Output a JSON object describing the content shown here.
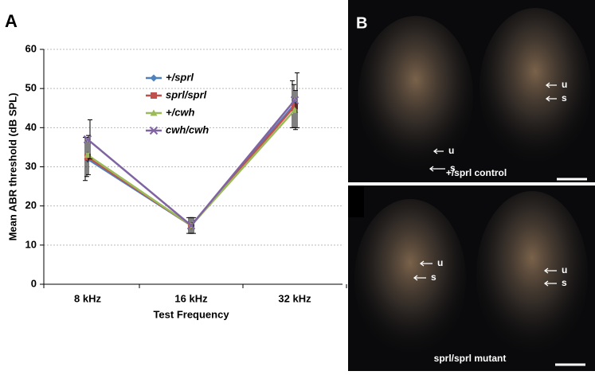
{
  "panel_a_label": "A",
  "chart_data": {
    "type": "line",
    "x_label": "Test Frequency",
    "y_label": "Mean ABR threshold (dB SPL)",
    "categories": [
      "8 kHz",
      "16 kHz",
      "32 kHz"
    ],
    "ylim": [
      0,
      60
    ],
    "yticks": [
      0,
      10,
      20,
      30,
      40,
      50,
      60
    ],
    "grid": true,
    "series": [
      {
        "name": "+/sprl",
        "color": "#4f81bd",
        "marker": "diamond",
        "values": [
          32,
          15,
          46
        ],
        "errors": [
          5.5,
          2,
          6
        ]
      },
      {
        "name": "sprl/sprl",
        "color": "#c0504d",
        "marker": "square",
        "values": [
          32.5,
          15,
          45.5
        ],
        "errors": [
          5,
          2,
          5.5
        ]
      },
      {
        "name": "+/cwh",
        "color": "#9bbb59",
        "marker": "triangle",
        "values": [
          33,
          15,
          44.5
        ],
        "errors": [
          5,
          2,
          5
        ]
      },
      {
        "name": "cwh/cwh",
        "color": "#8064a2",
        "marker": "cross",
        "values": [
          37,
          15,
          47
        ],
        "errors": [
          5,
          2,
          7
        ]
      }
    ]
  },
  "panel_b": {
    "label": "B",
    "images": [
      {
        "caption": "+/sprl control",
        "annotations": [
          "u",
          "s",
          "u",
          "s"
        ]
      },
      {
        "caption": "sprl/sprl mutant",
        "annotations": [
          "u",
          "s",
          "u",
          "s"
        ]
      }
    ]
  }
}
